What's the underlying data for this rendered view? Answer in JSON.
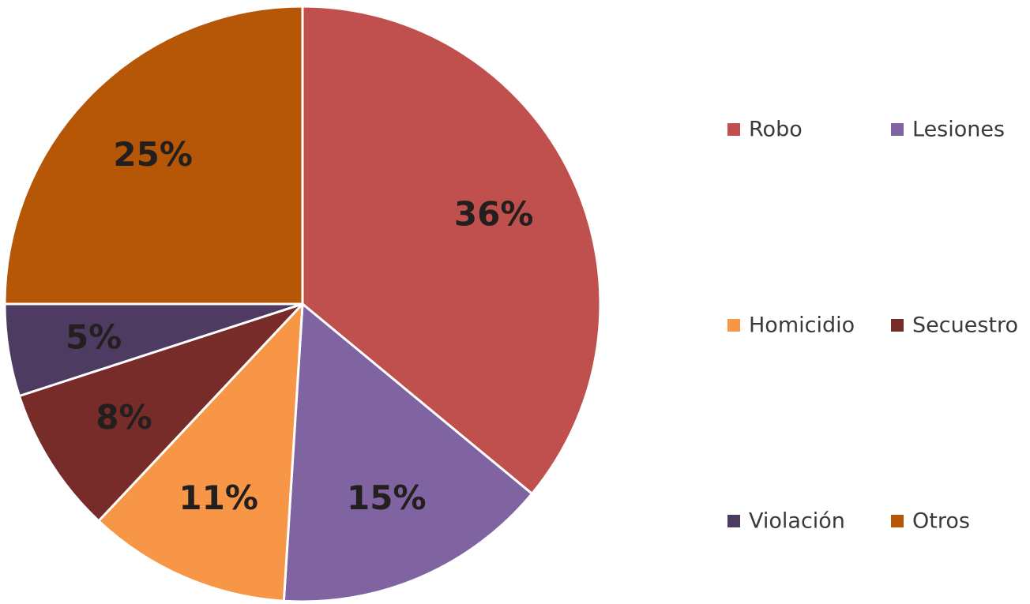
{
  "chart_data": {
    "type": "pie",
    "categories": [
      "Robo",
      "Lesiones",
      "Homicidio",
      "Secuestro",
      "Violación",
      "Otros"
    ],
    "values": [
      36,
      15,
      11,
      8,
      5,
      25
    ],
    "value_labels": [
      "36%",
      "15%",
      "11%",
      "8%",
      "5%",
      "25%"
    ],
    "colors": [
      "#c0504d",
      "#8064a2",
      "#f79646",
      "#772c2a",
      "#4d3b62",
      "#b65708"
    ],
    "start_angle": "12 o'clock",
    "direction": "clockwise",
    "legend": {
      "position": "right",
      "columns": 2,
      "entries": [
        "Robo",
        "Lesiones",
        "Homicidio",
        "Secuestro",
        "Violación",
        "Otros"
      ]
    }
  }
}
